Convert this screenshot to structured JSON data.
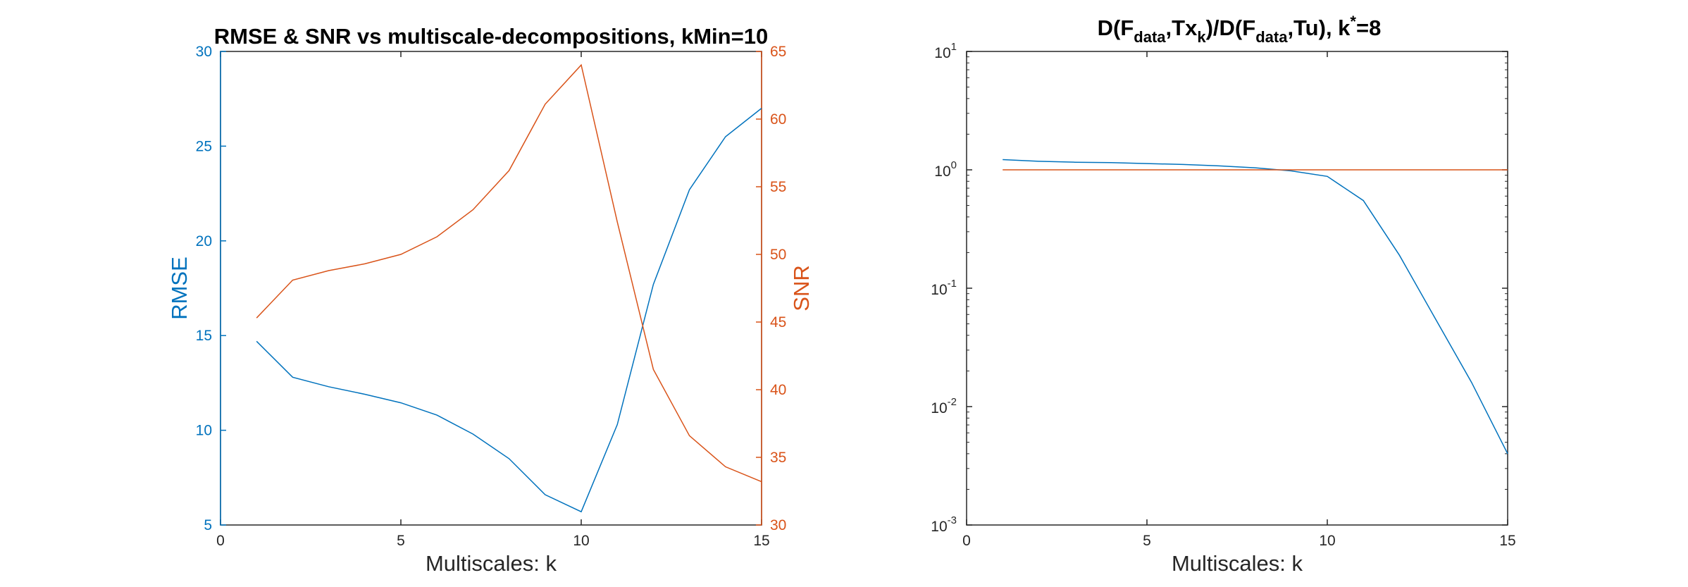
{
  "chart_data": [
    {
      "type": "line",
      "title": "RMSE & SNR vs multiscale-decompositions, kMin=10",
      "xlabel": "Multiscales: k",
      "ylabel": "RMSE",
      "y2label": "SNR",
      "xlim": [
        0,
        15
      ],
      "ylim": [
        5,
        30
      ],
      "y2lim": [
        30,
        65
      ],
      "xticks": [
        0,
        5,
        10,
        15
      ],
      "yticks": [
        5,
        10,
        15,
        20,
        25,
        30
      ],
      "y2ticks": [
        30,
        35,
        40,
        45,
        50,
        55,
        60,
        65
      ],
      "grid": false,
      "x": [
        1,
        2,
        3,
        4,
        5,
        6,
        7,
        8,
        9,
        10,
        11,
        12,
        13,
        14,
        15
      ],
      "series": [
        {
          "name": "RMSE",
          "axis": "left",
          "color": "#0072BD",
          "values": [
            14.7,
            12.8,
            12.3,
            11.9,
            11.45,
            10.8,
            9.8,
            8.5,
            6.6,
            5.7,
            10.3,
            17.7,
            22.7,
            25.5,
            27.0
          ]
        },
        {
          "name": "SNR",
          "axis": "right",
          "color": "#D95319",
          "values": [
            45.3,
            48.1,
            48.8,
            49.3,
            50.0,
            51.3,
            53.3,
            56.2,
            61.1,
            64.0,
            52.4,
            41.5,
            36.6,
            34.3,
            33.2
          ]
        }
      ],
      "colors": {
        "left_axis": "#0072BD",
        "right_axis": "#D95319"
      }
    },
    {
      "type": "line",
      "title_parts": {
        "a": "D(F",
        "b": "data",
        "c": ",Tx",
        "d": "k",
        "e": ")/D(F",
        "f": "data",
        "g": ",Tu), k",
        "h": "*",
        "i": "=8"
      },
      "xlabel": "Multiscales: k",
      "ylabel": "",
      "xlim": [
        0,
        15
      ],
      "ylim": [
        0.001,
        10
      ],
      "yscale": "log",
      "xticks": [
        0,
        5,
        10,
        15
      ],
      "ytick_exponents": [
        "-3",
        "-2",
        "-1",
        "0",
        "1"
      ],
      "ytick_base": "10",
      "grid": false,
      "x": [
        1,
        2,
        3,
        4,
        5,
        6,
        7,
        8,
        9,
        10,
        11,
        12,
        13,
        14,
        15
      ],
      "series": [
        {
          "color": "#0072BD",
          "values": [
            1.22,
            1.18,
            1.16,
            1.15,
            1.13,
            1.11,
            1.08,
            1.04,
            0.98,
            0.88,
            0.55,
            0.19,
            0.055,
            0.016,
            0.004
          ]
        },
        {
          "color": "#D95319",
          "values": [
            1,
            1,
            1,
            1,
            1,
            1,
            1,
            1,
            1,
            1,
            1,
            1,
            1,
            1,
            1
          ]
        }
      ]
    }
  ]
}
